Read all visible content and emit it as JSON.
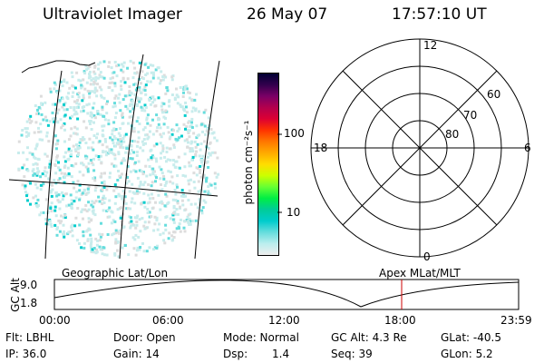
{
  "header": {
    "instrument": "Ultraviolet Imager",
    "date": "26 May 07",
    "time": "17:57:10 UT"
  },
  "colorbar": {
    "unit_label": "photon cm⁻²s⁻¹",
    "ticks": [
      "100",
      "10"
    ],
    "scale": "log",
    "colors": [
      "#000033",
      "#33004d",
      "#7a0066",
      "#b3004d",
      "#dd0033",
      "#ff3300",
      "#ff7700",
      "#ffaa00",
      "#ffdd00",
      "#ccff00",
      "#66ff33",
      "#00ee44",
      "#00cc99",
      "#00cccc",
      "#66dddd",
      "#bbeeee",
      "#eeeeee"
    ]
  },
  "polar": {
    "mlt_labels": {
      "top": "12",
      "left": "18",
      "right": "6",
      "bottom": "0"
    },
    "lat_labels": [
      "60",
      "70",
      "80"
    ]
  },
  "altitude_plot": {
    "left_title": "Geographic Lat/Lon",
    "right_title": "Apex MLat/MLT",
    "axis_title": "GC Alt",
    "y_ticks": [
      "9.0",
      "1.8"
    ],
    "x_ticks": [
      "00:00",
      "06:00",
      "12:00",
      "18:00",
      "23:59"
    ],
    "marker_color": "#cc0000"
  },
  "info": {
    "filter": "Flt: LBHL",
    "door": "Door: Open",
    "mode": "Mode: Normal",
    "gc_alt": "GC Alt: 4.3 Re",
    "glat": "GLat: -40.5",
    "ip": "IP: 36.0",
    "gain": "Gain: 14",
    "dsp_label": "Dsp:",
    "dsp_value": "1.4",
    "seq": "Seq: 39",
    "glon": "GLon:  5.2"
  },
  "image_colors": {
    "speckle_light": "#c8ecec",
    "speckle_mid": "#66dddd",
    "speckle_bright": "#00cccc",
    "speckle_grey": "#dddddd"
  }
}
